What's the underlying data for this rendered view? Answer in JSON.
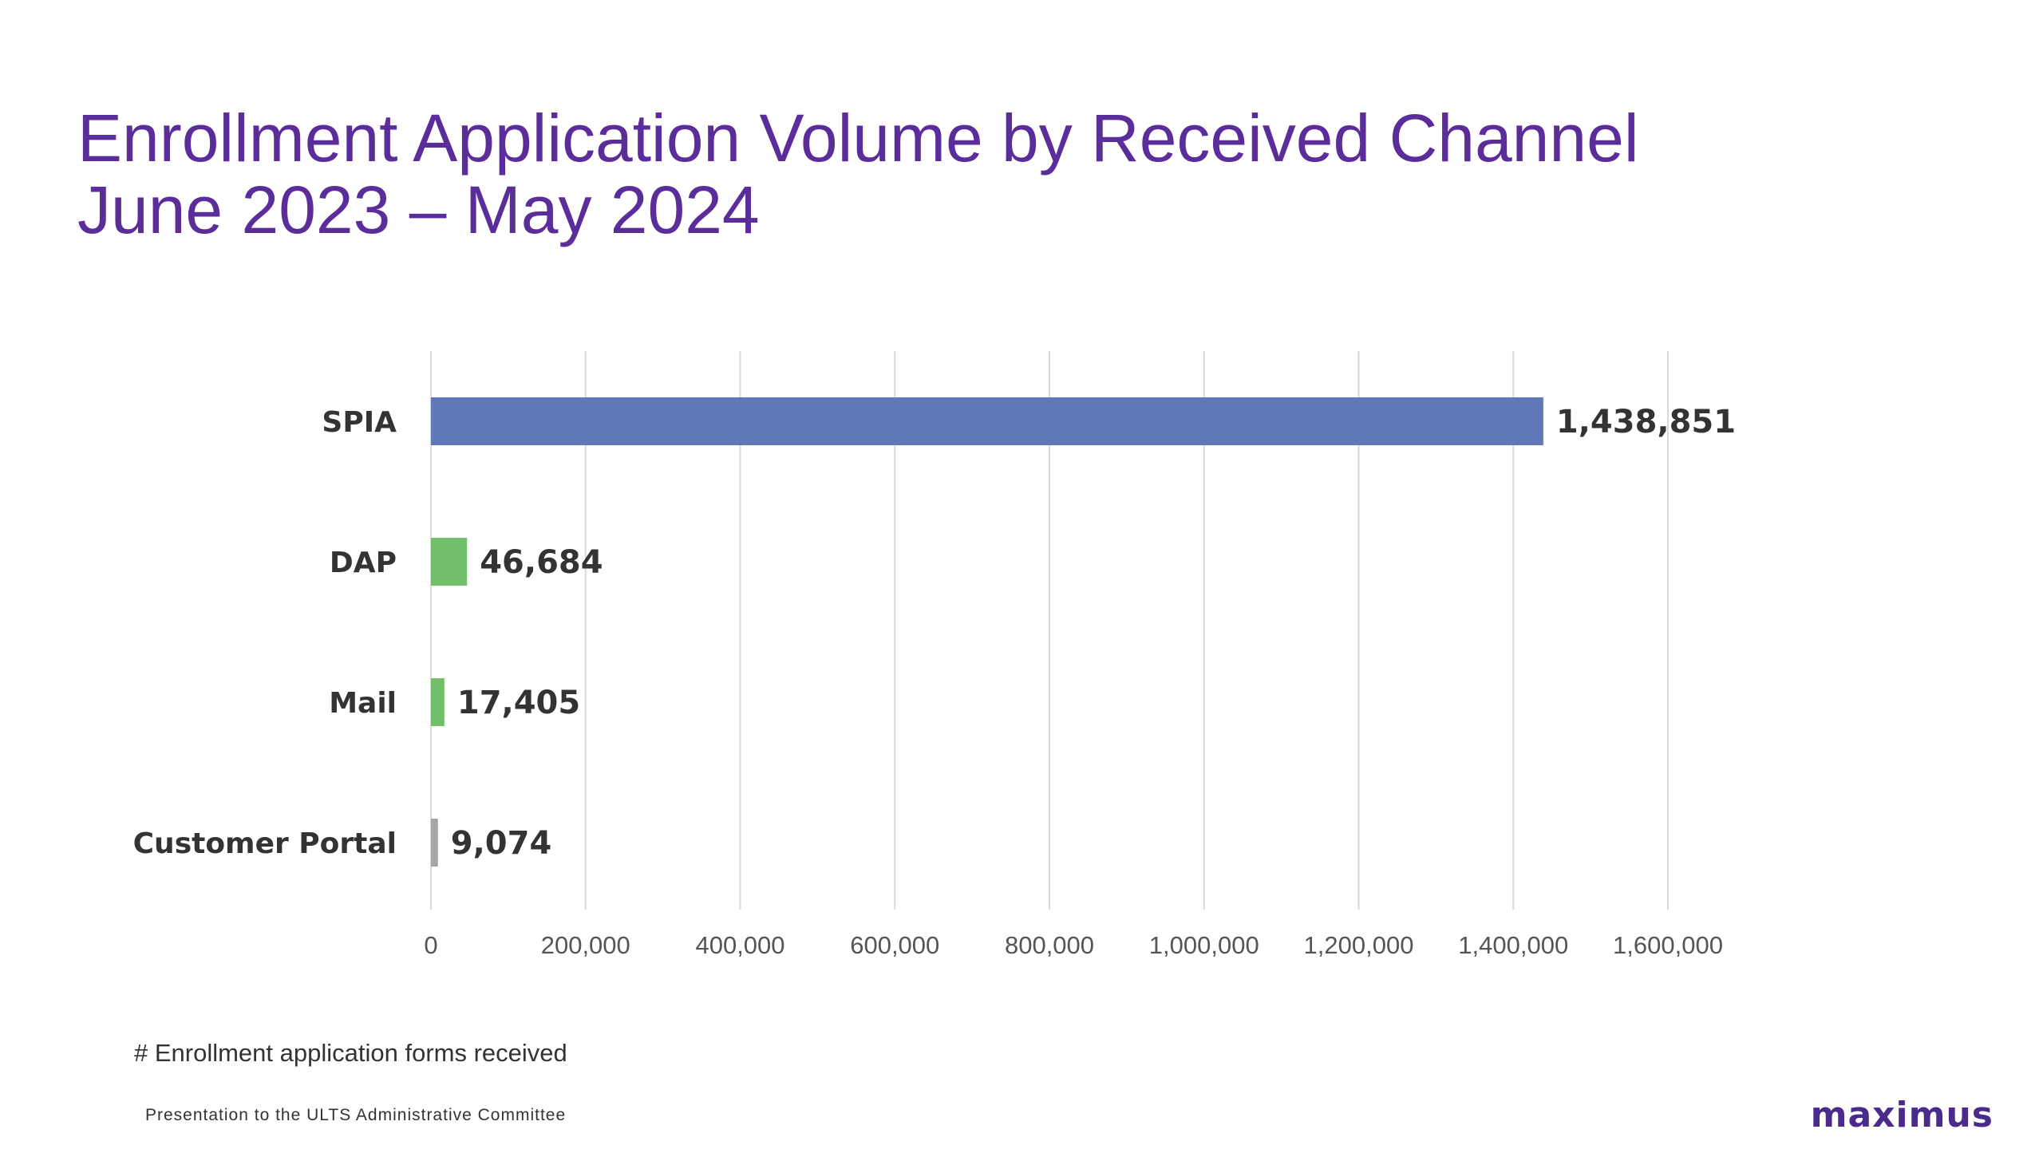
{
  "slide": {
    "title_line1": "Enrollment Application Volume by Received Channel",
    "title_line2": "June 2023 – May 2024",
    "footer": "Presentation to the ULTS Administrative Committee",
    "logo_text": "maximus"
  },
  "chart_data": {
    "type": "bar",
    "orientation": "horizontal",
    "title": "",
    "xlabel": "# Enrollment application forms received",
    "ylabel": "",
    "categories": [
      "SPIA",
      "DAP",
      "Mail",
      "Customer Portal"
    ],
    "values": [
      1438851,
      46684,
      17405,
      9074
    ],
    "value_labels": [
      "1,438,851",
      "46,684",
      "17,405",
      "9,074"
    ],
    "bar_colors": [
      "#6178b8",
      "#72bf6a",
      "#72bf6a",
      "#a6a6a6"
    ],
    "xlim": [
      0,
      1600000
    ],
    "x_ticks": [
      0,
      200000,
      400000,
      600000,
      800000,
      1000000,
      1200000,
      1400000,
      1600000
    ],
    "x_tick_labels": [
      "0",
      "200,000",
      "400,000",
      "600,000",
      "800,000",
      "1,000,000",
      "1,200,000",
      "1,400,000",
      "1,600,000"
    ],
    "grid": "vertical",
    "legend": "none"
  },
  "colors": {
    "title": "#5b2d9b",
    "gridline": "#d9d9d9",
    "text": "#333333",
    "logo": "#4a2a8c"
  }
}
